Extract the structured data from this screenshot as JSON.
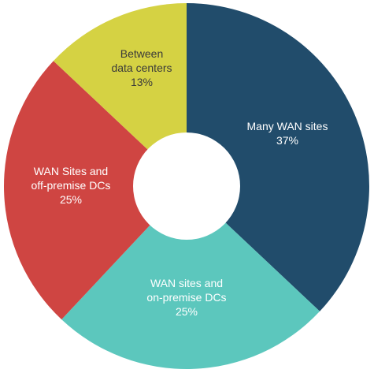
{
  "chart_data": {
    "type": "pie",
    "variant": "donut",
    "title": "",
    "slices": [
      {
        "label_lines": [
          "Many WAN sites"
        ],
        "value": 37,
        "value_text": "37%",
        "color": "#214c6b",
        "label_color": "#ffffff"
      },
      {
        "label_lines": [
          "WAN sites and",
          "on-premise DCs"
        ],
        "value": 25,
        "value_text": "25%",
        "color": "#5cc7bd",
        "label_color": "#ffffff"
      },
      {
        "label_lines": [
          "WAN Sites and",
          "off-premise DCs"
        ],
        "value": 25,
        "value_text": "25%",
        "color": "#cf4542",
        "label_color": "#ffffff"
      },
      {
        "label_lines": [
          "Between",
          "data centers"
        ],
        "value": 13,
        "value_text": "13%",
        "color": "#d5d243",
        "label_color": "#3a3a3a"
      }
    ]
  }
}
